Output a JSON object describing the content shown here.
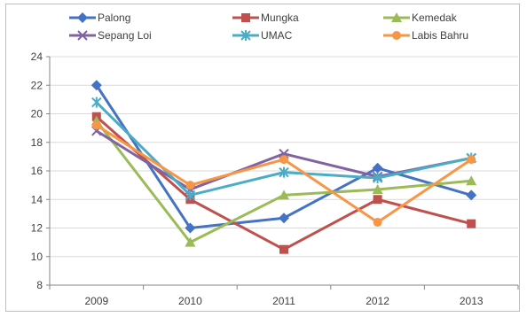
{
  "chart_data": {
    "type": "line",
    "categories": [
      "2009",
      "2010",
      "2011",
      "2012",
      "2013"
    ],
    "ylim": [
      8,
      24
    ],
    "yticks": [
      8,
      10,
      12,
      14,
      16,
      18,
      20,
      22,
      24
    ],
    "grid": "horizontal",
    "legend_placement": "top",
    "series": [
      {
        "name": "Palong",
        "color": "#4472c4",
        "marker": "diamond",
        "values": [
          22.0,
          12.0,
          12.7,
          16.2,
          14.3
        ]
      },
      {
        "name": "Mungka",
        "color": "#c0504d",
        "marker": "square",
        "values": [
          19.8,
          14.0,
          10.5,
          14.0,
          12.3
        ]
      },
      {
        "name": "Kemedak",
        "color": "#9bbb59",
        "marker": "triangle",
        "values": [
          19.5,
          11.0,
          14.3,
          14.7,
          15.3
        ]
      },
      {
        "name": "Sepang Loi",
        "color": "#8064a2",
        "marker": "x",
        "values": [
          18.8,
          14.7,
          17.2,
          15.6,
          16.9
        ]
      },
      {
        "name": "UMAC",
        "color": "#4bacc6",
        "marker": "star",
        "values": [
          20.8,
          14.3,
          15.9,
          15.5,
          16.9
        ]
      },
      {
        "name": "Labis Bahru",
        "color": "#f79646",
        "marker": "circle",
        "values": [
          19.2,
          15.0,
          16.8,
          12.4,
          16.8
        ]
      }
    ]
  }
}
